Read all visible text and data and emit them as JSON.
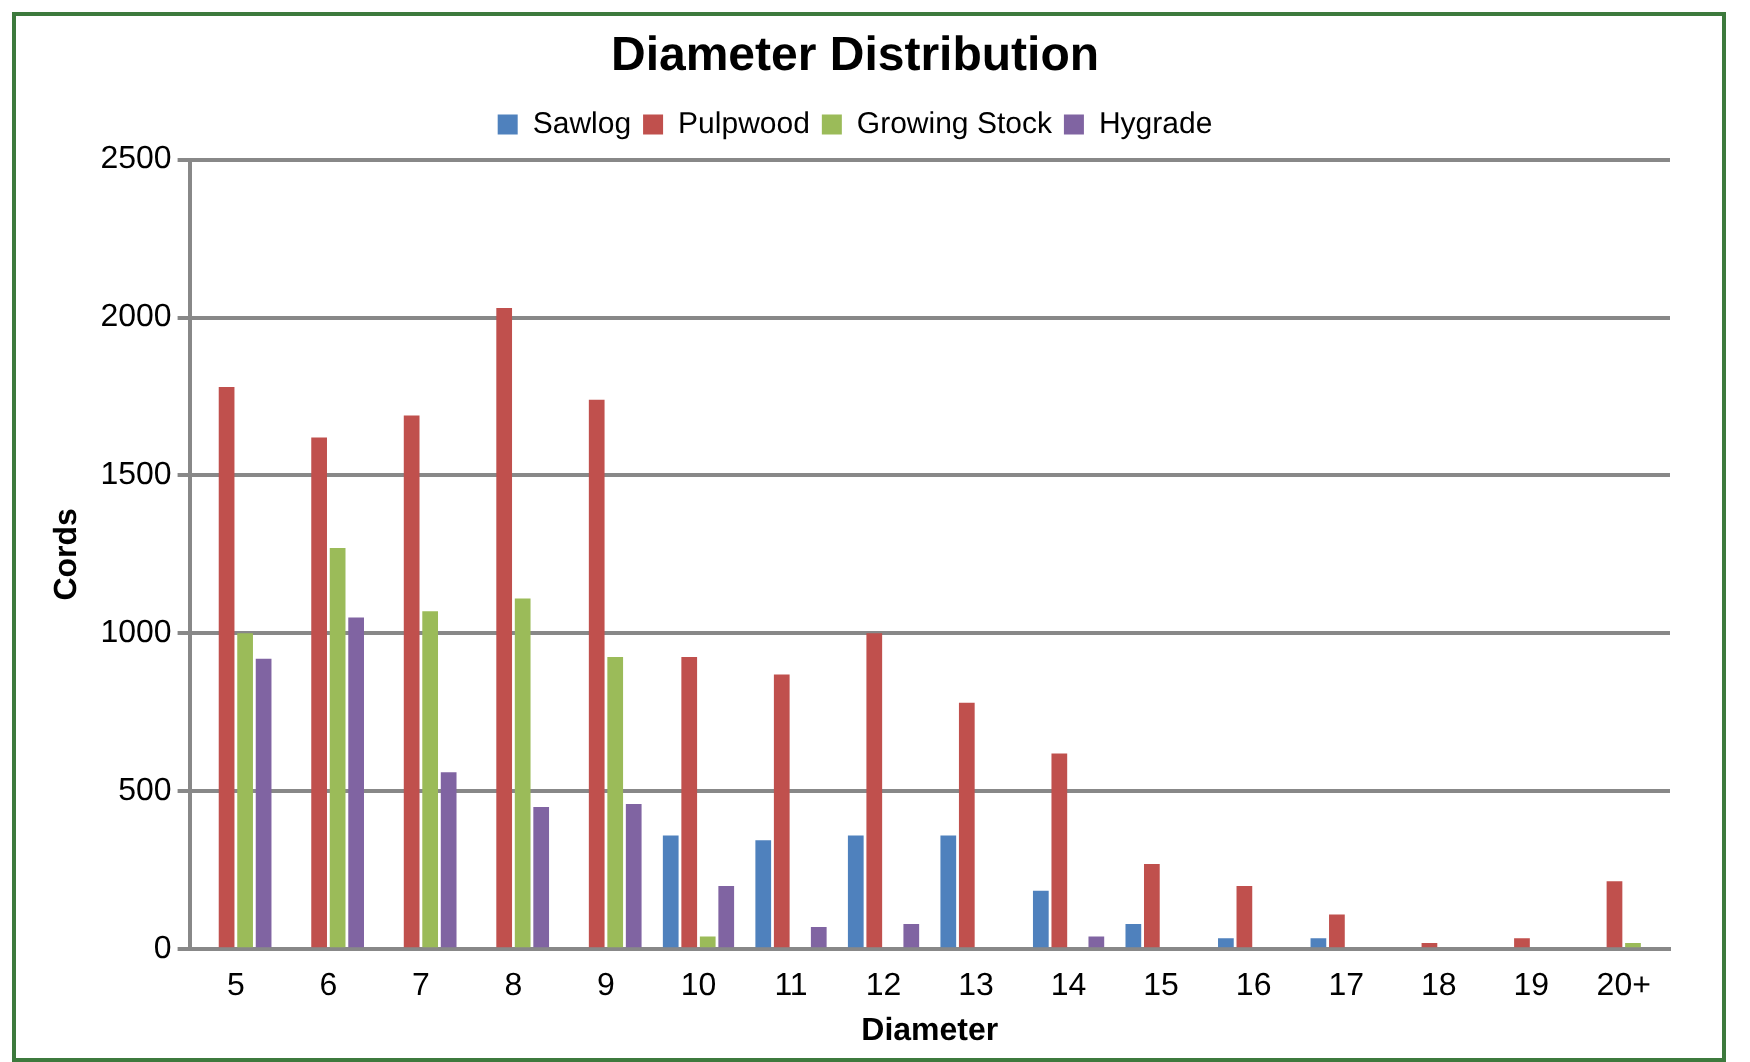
{
  "chart_data": {
    "type": "bar",
    "title": "Diameter Distribution",
    "xlabel": "Diameter",
    "ylabel": "Cords",
    "categories": [
      "5",
      "6",
      "7",
      "8",
      "9",
      "10",
      "11",
      "12",
      "13",
      "14",
      "15",
      "16",
      "17",
      "18",
      "19",
      "20+"
    ],
    "series": [
      {
        "name": "Sawlog",
        "color": "#4f81bd",
        "values": [
          0,
          0,
          0,
          0,
          0,
          360,
          345,
          360,
          360,
          185,
          80,
          35,
          35,
          0,
          0,
          0
        ]
      },
      {
        "name": "Pulpwood",
        "color": "#c0504d",
        "values": [
          1780,
          1620,
          1690,
          2030,
          1740,
          925,
          870,
          1000,
          780,
          620,
          270,
          200,
          110,
          20,
          35,
          215
        ]
      },
      {
        "name": "Growing Stock",
        "color": "#9bbb59",
        "values": [
          1000,
          1270,
          1070,
          1110,
          925,
          40,
          0,
          0,
          0,
          0,
          0,
          0,
          0,
          0,
          0,
          20
        ]
      },
      {
        "name": "Hygrade",
        "color": "#8064a2",
        "values": [
          920,
          1050,
          560,
          450,
          460,
          200,
          70,
          80,
          0,
          40,
          0,
          0,
          0,
          0,
          0,
          0
        ]
      }
    ],
    "ylim": [
      0,
      2500
    ],
    "yticks": [
      0,
      500,
      1000,
      1500,
      2000,
      2500
    ],
    "grid": "y",
    "legend": "top"
  }
}
